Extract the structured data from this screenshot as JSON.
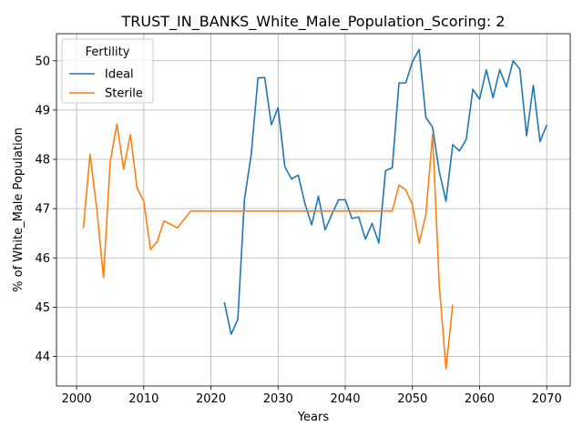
{
  "chart_data": {
    "type": "line",
    "title": "TRUST_IN_BANKS_White_Male_Population_Scoring: 2",
    "xlabel": "Years",
    "ylabel": "% of White_Male Population",
    "xlim": [
      1997,
      2073.5
    ],
    "ylim": [
      43.4,
      50.55
    ],
    "x_ticks": [
      2000,
      2010,
      2020,
      2030,
      2040,
      2050,
      2060,
      2070
    ],
    "y_ticks": [
      44,
      45,
      46,
      47,
      48,
      49,
      50
    ],
    "grid": true,
    "legend": {
      "title": "Fertility",
      "placement": "top-left"
    },
    "series": [
      {
        "name": "Ideal",
        "color": "#1f77b4",
        "x": [
          2022,
          2023,
          2024,
          2025,
          2026,
          2027,
          2028,
          2029,
          2030,
          2031,
          2032,
          2033,
          2034,
          2035,
          2036,
          2037,
          2038,
          2039,
          2040,
          2041,
          2042,
          2043,
          2044,
          2045,
          2046,
          2047,
          2048,
          2049,
          2050,
          2051,
          2052,
          2053,
          2054,
          2055,
          2056,
          2057,
          2058,
          2059,
          2060,
          2061,
          2062,
          2063,
          2064,
          2065,
          2066,
          2067,
          2068,
          2069,
          2070
        ],
        "values": [
          45.1,
          44.45,
          44.75,
          47.2,
          48.1,
          49.65,
          49.66,
          48.7,
          49.05,
          47.85,
          47.6,
          47.68,
          47.1,
          46.67,
          47.25,
          46.57,
          46.88,
          47.18,
          47.18,
          46.8,
          46.83,
          46.38,
          46.7,
          46.3,
          47.77,
          47.83,
          49.55,
          49.55,
          49.98,
          50.23,
          48.85,
          48.65,
          47.75,
          47.15,
          48.3,
          48.17,
          48.4,
          49.42,
          49.22,
          49.82,
          49.25,
          49.82,
          49.47,
          50.0,
          49.83,
          48.48,
          49.5,
          48.36,
          48.7
        ]
      },
      {
        "name": "Sterile",
        "color": "#ff7f0e",
        "x": [
          2001,
          2002,
          2003,
          2004,
          2005,
          2006,
          2007,
          2008,
          2009,
          2010,
          2011,
          2012,
          2013,
          2014,
          2015,
          2016,
          2017,
          2018,
          2019,
          2020,
          2021,
          2022,
          2023,
          2024,
          2025,
          2026,
          2027,
          2028,
          2029,
          2030,
          2031,
          2032,
          2033,
          2034,
          2035,
          2036,
          2037,
          2038,
          2039,
          2040,
          2041,
          2042,
          2043,
          2044,
          2045,
          2046,
          2047,
          2048,
          2049,
          2050,
          2051,
          2052,
          2053,
          2054,
          2055,
          2056
        ],
        "values": [
          46.6,
          48.1,
          47.0,
          45.6,
          47.95,
          48.72,
          47.8,
          48.5,
          47.42,
          47.15,
          46.17,
          46.33,
          46.75,
          46.68,
          46.61,
          46.78,
          46.95,
          46.95,
          46.95,
          46.95,
          46.95,
          46.95,
          46.95,
          46.95,
          46.95,
          46.95,
          46.95,
          46.95,
          46.95,
          46.95,
          46.95,
          46.95,
          46.95,
          46.95,
          46.95,
          46.95,
          46.95,
          46.95,
          46.95,
          46.95,
          46.95,
          46.95,
          46.95,
          46.95,
          46.95,
          46.95,
          46.95,
          47.48,
          47.38,
          47.08,
          46.3,
          46.88,
          48.5,
          45.45,
          43.75,
          45.05
        ]
      }
    ]
  }
}
